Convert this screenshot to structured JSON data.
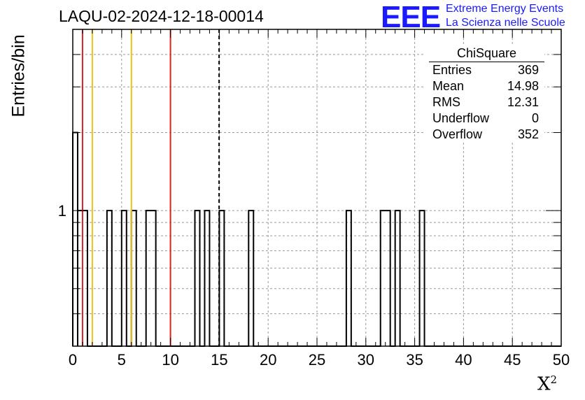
{
  "header": {
    "title": "LAQU-02-2024-12-18-00014",
    "logo_mark": "EEE",
    "logo_line1": "Extreme Energy Events",
    "logo_line2": "La Scienza nelle Scuole"
  },
  "stats": {
    "name": "ChiSquare",
    "rows": [
      {
        "label": "Entries",
        "value": "369"
      },
      {
        "label": "Mean",
        "value": "14.98"
      },
      {
        "label": "RMS",
        "value": "12.31"
      },
      {
        "label": "Underflow",
        "value": "0"
      },
      {
        "label": "Overflow",
        "value": "352"
      }
    ]
  },
  "chart_data": {
    "type": "bar",
    "title": "LAQU-02-2024-12-18-00014",
    "xlabel": "X",
    "xlabel_superscript": "2",
    "ylabel": "Entries/bin",
    "xlim": [
      0,
      50
    ],
    "ylim_log": [
      0.3,
      5
    ],
    "log_y": true,
    "grid": true,
    "bin_width": 0.5,
    "x_ticks": [
      0,
      5,
      10,
      15,
      20,
      25,
      30,
      35,
      40,
      45,
      50
    ],
    "y_tick_labels": [
      {
        "value": 1,
        "label": "1"
      }
    ],
    "bins": [
      {
        "x0": 0.0,
        "x1": 0.5,
        "count": 2
      },
      {
        "x0": 0.5,
        "x1": 1.5,
        "count": 1
      },
      {
        "x0": 3.5,
        "x1": 4.0,
        "count": 1
      },
      {
        "x0": 5.0,
        "x1": 5.5,
        "count": 1
      },
      {
        "x0": 6.0,
        "x1": 6.5,
        "count": 1
      },
      {
        "x0": 7.5,
        "x1": 8.5,
        "count": 1
      },
      {
        "x0": 12.5,
        "x1": 13.0,
        "count": 1
      },
      {
        "x0": 13.5,
        "x1": 14.0,
        "count": 1
      },
      {
        "x0": 15.0,
        "x1": 15.5,
        "count": 1
      },
      {
        "x0": 18.0,
        "x1": 18.5,
        "count": 1
      },
      {
        "x0": 28.0,
        "x1": 28.5,
        "count": 1
      },
      {
        "x0": 31.5,
        "x1": 32.5,
        "count": 1
      },
      {
        "x0": 33.0,
        "x1": 33.5,
        "count": 1
      },
      {
        "x0": 35.5,
        "x1": 36.0,
        "count": 1
      }
    ],
    "vlines": [
      {
        "x": 1.0,
        "color": "#dd2222",
        "style": "solid"
      },
      {
        "x": 2.0,
        "color": "#f0c020",
        "style": "solid"
      },
      {
        "x": 6.0,
        "color": "#f0c020",
        "style": "solid"
      },
      {
        "x": 10.0,
        "color": "#dd2222",
        "style": "solid"
      },
      {
        "x": 14.98,
        "color": "#000000",
        "style": "dashed"
      }
    ]
  }
}
